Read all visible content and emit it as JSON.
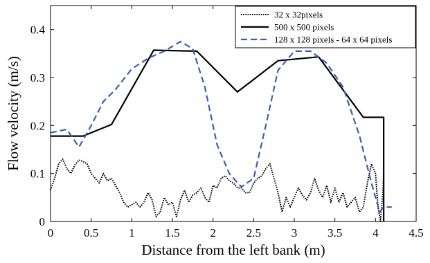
{
  "chart_data": {
    "type": "line",
    "xlabel": "Distance from the left bank (m)",
    "ylabel": "Flow velocity (m/s)",
    "xlim": [
      0,
      4.5
    ],
    "ylim": [
      0,
      0.45
    ],
    "xticks": [
      0,
      0.5,
      1,
      1.5,
      2,
      2.5,
      3,
      3.5,
      4,
      4.5
    ],
    "xtick_labels": [
      "0",
      "0.5",
      "1",
      "1.5",
      "2",
      "2.5",
      "3",
      "3.5",
      "4",
      "4.5"
    ],
    "yticks": [
      0,
      0.1,
      0.2,
      0.3,
      0.4
    ],
    "ytick_labels": [
      "0",
      "0.1",
      "0.2",
      "0.3",
      "0.4"
    ],
    "grid": false,
    "legend_position": "top-right",
    "series": [
      {
        "name": "32 x 32pixels",
        "color": "#000000",
        "style": "dotted",
        "x": [
          0,
          0.05,
          0.1,
          0.15,
          0.2,
          0.25,
          0.3,
          0.35,
          0.4,
          0.45,
          0.5,
          0.55,
          0.6,
          0.65,
          0.7,
          0.75,
          0.8,
          0.85,
          0.9,
          0.95,
          1.0,
          1.05,
          1.1,
          1.15,
          1.2,
          1.25,
          1.3,
          1.35,
          1.4,
          1.45,
          1.5,
          1.55,
          1.6,
          1.65,
          1.7,
          1.75,
          1.8,
          1.85,
          1.9,
          1.95,
          2.0,
          2.05,
          2.1,
          2.15,
          2.2,
          2.25,
          2.3,
          2.35,
          2.4,
          2.45,
          2.5,
          2.55,
          2.6,
          2.65,
          2.7,
          2.75,
          2.8,
          2.85,
          2.9,
          2.95,
          3.0,
          3.05,
          3.1,
          3.15,
          3.2,
          3.25,
          3.3,
          3.35,
          3.4,
          3.45,
          3.5,
          3.55,
          3.6,
          3.65,
          3.7,
          3.75,
          3.8,
          3.85,
          3.9,
          3.95,
          4.0,
          4.03,
          4.06,
          4.09,
          4.1
        ],
        "y": [
          0.065,
          0.09,
          0.12,
          0.13,
          0.11,
          0.1,
          0.118,
          0.128,
          0.125,
          0.12,
          0.1,
          0.09,
          0.08,
          0.1,
          0.085,
          0.09,
          0.075,
          0.06,
          0.04,
          0.03,
          0.035,
          0.04,
          0.03,
          0.04,
          0.06,
          0.045,
          0.01,
          0.02,
          0.05,
          0.035,
          0.04,
          0.01,
          0.045,
          0.065,
          0.04,
          0.055,
          0.06,
          0.07,
          0.05,
          0.04,
          0.075,
          0.07,
          0.09,
          0.095,
          0.085,
          0.08,
          0.07,
          0.07,
          0.06,
          0.06,
          0.08,
          0.09,
          0.095,
          0.11,
          0.12,
          0.09,
          0.06,
          0.02,
          0.05,
          0.03,
          0.05,
          0.07,
          0.055,
          0.045,
          0.06,
          0.09,
          0.065,
          0.05,
          0.075,
          0.04,
          0.07,
          0.04,
          0.06,
          0.03,
          0.04,
          0.05,
          0.02,
          0.03,
          0.08,
          0.12,
          0.1,
          0.03,
          0.0,
          0.06,
          0.1
        ]
      },
      {
        "name": "500 x 500 pixels",
        "color": "#000000",
        "style": "solid",
        "x": [
          0,
          0.4,
          0.75,
          1.27,
          1.8,
          2.3,
          2.8,
          3.3,
          3.85,
          4.1,
          4.1
        ],
        "y": [
          0.178,
          0.178,
          0.202,
          0.357,
          0.355,
          0.27,
          0.335,
          0.343,
          0.217,
          0.217,
          0.0
        ]
      },
      {
        "name": "128 x 128 pixels - 64 x 64 pixels",
        "color": "#3a5fb0",
        "style": "dashed",
        "x": [
          0,
          0.2,
          0.35,
          0.5,
          0.65,
          0.8,
          1.0,
          1.2,
          1.4,
          1.6,
          1.75,
          1.9,
          2.05,
          2.2,
          2.35,
          2.5,
          2.65,
          2.8,
          3.0,
          3.2,
          3.4,
          3.6,
          3.8,
          3.95,
          4.05,
          4.1,
          4.2
        ],
        "y": [
          0.185,
          0.192,
          0.155,
          0.2,
          0.25,
          0.275,
          0.318,
          0.34,
          0.355,
          0.375,
          0.36,
          0.28,
          0.16,
          0.1,
          0.072,
          0.09,
          0.2,
          0.315,
          0.355,
          0.355,
          0.33,
          0.28,
          0.18,
          0.08,
          0.02,
          0.03,
          0.03
        ]
      }
    ]
  }
}
